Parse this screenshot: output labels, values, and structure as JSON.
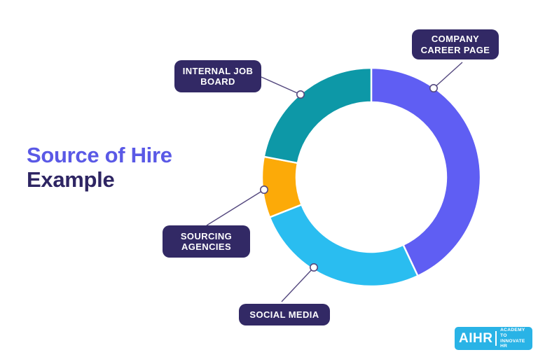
{
  "title": {
    "line1": "Source of Hire",
    "line2": "Example"
  },
  "chart_data": {
    "type": "pie",
    "subtype": "donut",
    "title": "Source of Hire Example",
    "start_angle_deg": 0,
    "direction": "clockwise",
    "units": "percent (estimated from arc angles; no numeric labels are shown in the figure)",
    "legend_position": "callout-labels",
    "segments": [
      {
        "label": "COMPANY CAREER PAGE",
        "value": 43,
        "color": "#5f5ef3"
      },
      {
        "label": "SOCIAL MEDIA",
        "value": 26,
        "color": "#2abdf0"
      },
      {
        "label": "SOURCING AGENCIES",
        "value": 9,
        "color": "#fcaa08"
      },
      {
        "label": "INTERNAL JOB BOARD",
        "value": 22,
        "color": "#0d98a7"
      }
    ]
  },
  "callouts": [
    {
      "id": "company-career-page",
      "text": "COMPANY\nCAREER PAGE"
    },
    {
      "id": "internal-job-board",
      "text": "INTERNAL JOB\nBOARD"
    },
    {
      "id": "sourcing-agencies",
      "text": "SOURCING\nAGENCIES"
    },
    {
      "id": "social-media",
      "text": "SOCIAL MEDIA"
    }
  ],
  "logo": {
    "brand": "AIHR",
    "tagline_line1": "ACADEMY TO",
    "tagline_line2": "INNOVATE HR"
  },
  "colors": {
    "background": "#ffffff",
    "title_line1": "#5a59e6",
    "title_line2": "#2e2563",
    "label_pill_bg": "#322965",
    "label_pill_text": "#ffffff",
    "connector_line": "#55497f",
    "marker_fill": "#ffffff",
    "marker_stroke": "#55497f",
    "segment_gap": "#ffffff",
    "logo_bg": "#29b3e6"
  }
}
